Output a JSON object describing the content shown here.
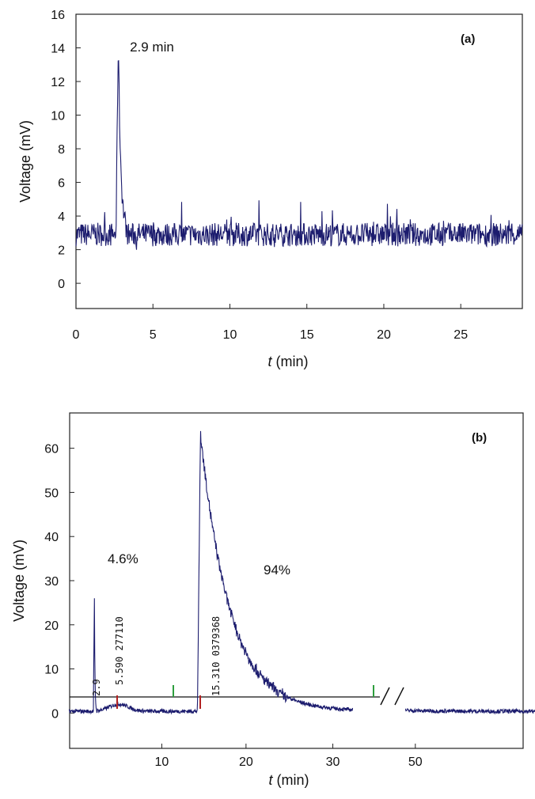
{
  "chart_data": [
    {
      "panel_label": "(a)",
      "type": "line",
      "xlabel_italic": "t",
      "xlabel_unit": "(min)",
      "ylabel": "Voltage (mV)",
      "xlim": [
        0,
        29
      ],
      "ylim": [
        -1.5,
        16
      ],
      "x_ticks": [
        0,
        5,
        10,
        15,
        20,
        25
      ],
      "y_ticks": [
        0,
        2,
        4,
        6,
        8,
        10,
        12,
        14,
        16
      ],
      "line_color": "#1c1c6e",
      "baseline_level": 2.9,
      "peak": {
        "x": 2.75,
        "y": 14.6
      },
      "annotations": [
        {
          "text": "2.9 min",
          "x": 3.5,
          "y": 13.8
        }
      ]
    },
    {
      "panel_label": "(b)",
      "type": "line",
      "xlabel_italic": "t",
      "xlabel_unit": "(min)",
      "ylabel": "Voltage (mV)",
      "x_ticks": [
        "10",
        "20",
        "30",
        "50"
      ],
      "y_ticks": [
        0,
        10,
        20,
        30,
        40,
        50,
        60
      ],
      "ylim": [
        -8,
        68
      ],
      "line_color": "#1c1c6e",
      "axis_break_between": [
        "30",
        "50"
      ],
      "peaks": [
        {
          "retention_min": 2.9,
          "max_mV": 30
        },
        {
          "retention_min": 15.3,
          "max_mV": 63
        }
      ],
      "annotations": [
        {
          "text": "4.6%"
        },
        {
          "text": "94%"
        }
      ],
      "peak_labels": [
        "2.9",
        "5.590  277110",
        "15.310  0379368"
      ],
      "marker_colors": {
        "start": "#b22222",
        "end": "#2e9e3e"
      }
    }
  ]
}
